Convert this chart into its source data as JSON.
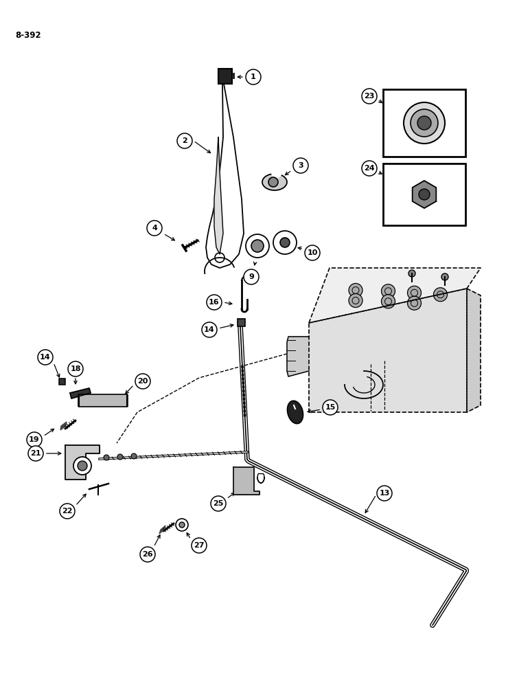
{
  "page_ref": "8-392",
  "background_color": "#ffffff",
  "line_color": "#000000",
  "figsize": [
    7.72,
    10.0
  ],
  "dpi": 100
}
